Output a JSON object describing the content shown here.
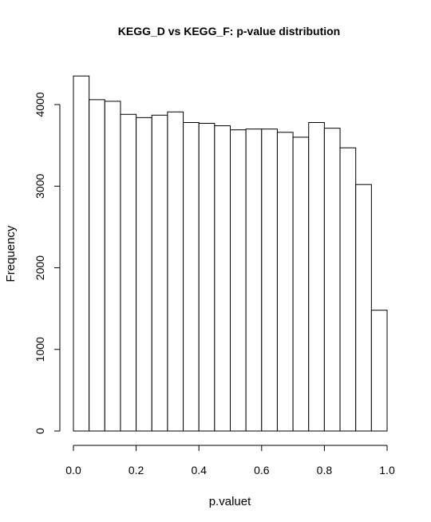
{
  "chart_data": {
    "type": "bar",
    "title": "KEGG_D vs KEGG_F: p-value distribution",
    "xlabel": "p.valuet",
    "ylabel": "Frequency",
    "xlim": [
      0.0,
      1.0
    ],
    "ylim": [
      0,
      4350
    ],
    "bin_width": 0.05,
    "bins": [
      {
        "x0": 0.0,
        "x1": 0.05,
        "count": 4350
      },
      {
        "x0": 0.05,
        "x1": 0.1,
        "count": 4060
      },
      {
        "x0": 0.1,
        "x1": 0.15,
        "count": 4040
      },
      {
        "x0": 0.15,
        "x1": 0.2,
        "count": 3880
      },
      {
        "x0": 0.2,
        "x1": 0.25,
        "count": 3840
      },
      {
        "x0": 0.25,
        "x1": 0.3,
        "count": 3870
      },
      {
        "x0": 0.3,
        "x1": 0.35,
        "count": 3910
      },
      {
        "x0": 0.35,
        "x1": 0.4,
        "count": 3780
      },
      {
        "x0": 0.4,
        "x1": 0.45,
        "count": 3770
      },
      {
        "x0": 0.45,
        "x1": 0.5,
        "count": 3740
      },
      {
        "x0": 0.5,
        "x1": 0.55,
        "count": 3690
      },
      {
        "x0": 0.55,
        "x1": 0.6,
        "count": 3700
      },
      {
        "x0": 0.6,
        "x1": 0.65,
        "count": 3700
      },
      {
        "x0": 0.65,
        "x1": 0.7,
        "count": 3660
      },
      {
        "x0": 0.7,
        "x1": 0.75,
        "count": 3600
      },
      {
        "x0": 0.75,
        "x1": 0.8,
        "count": 3780
      },
      {
        "x0": 0.8,
        "x1": 0.85,
        "count": 3710
      },
      {
        "x0": 0.85,
        "x1": 0.9,
        "count": 3470
      },
      {
        "x0": 0.9,
        "x1": 0.95,
        "count": 3020
      },
      {
        "x0": 0.95,
        "x1": 1.0,
        "count": 1480
      }
    ],
    "x_ticks": [
      0.0,
      0.2,
      0.4,
      0.6,
      0.8,
      1.0
    ],
    "x_tick_labels": [
      "0.0",
      "0.2",
      "0.4",
      "0.6",
      "0.8",
      "1.0"
    ],
    "y_ticks": [
      0,
      1000,
      2000,
      3000,
      4000
    ],
    "y_tick_labels": [
      "0",
      "1000",
      "2000",
      "3000",
      "4000"
    ],
    "bar_fill": "#ffffff",
    "bar_stroke": "#000000",
    "grid": false,
    "legend": "none"
  }
}
